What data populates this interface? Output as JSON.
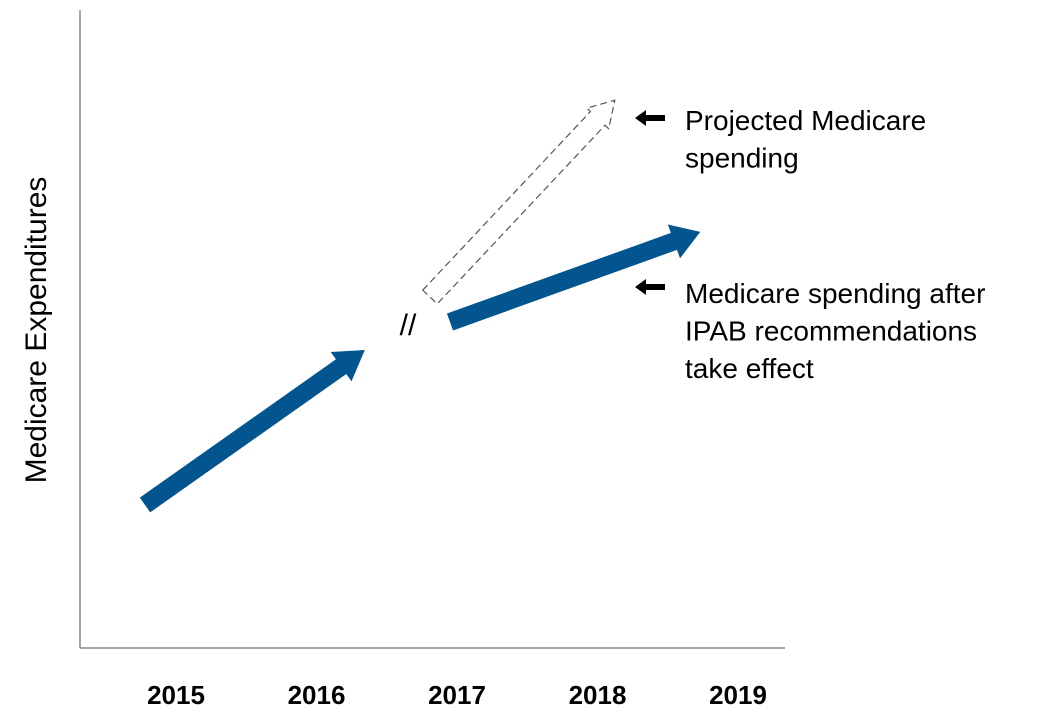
{
  "axis_label": "Medicare Expenditures",
  "categories": [
    "2015",
    "2016",
    "2017",
    "2018",
    "2019"
  ],
  "break_mark": "//",
  "annotations": [
    {
      "lines": [
        "Projected Medicare",
        "spending"
      ]
    },
    {
      "lines": [
        "Medicare spending after",
        "IPAB recommendations",
        "take effect"
      ]
    }
  ]
}
